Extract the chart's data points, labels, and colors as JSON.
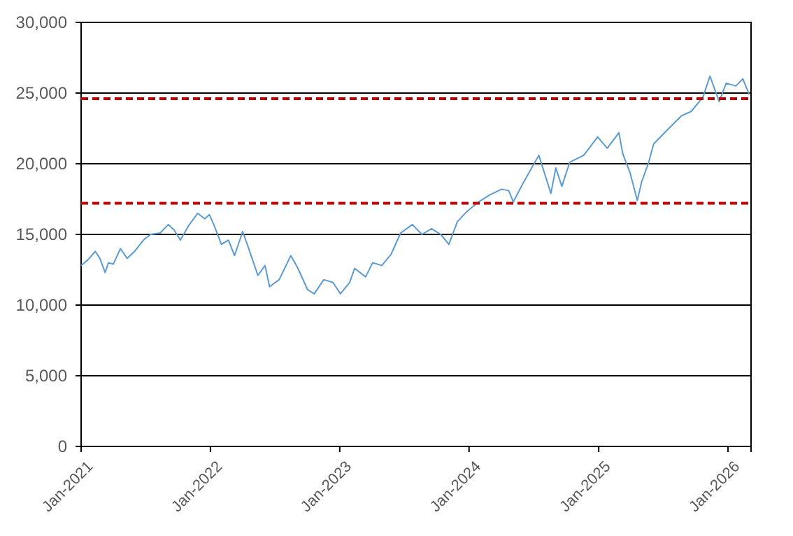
{
  "chart_data": {
    "type": "line",
    "x": [
      "2021-01-01",
      "2021-01-20",
      "2021-02-10",
      "2021-02-23",
      "2021-03-10",
      "2021-03-19",
      "2021-04-02",
      "2021-04-22",
      "2021-05-11",
      "2021-06-01",
      "2021-06-26",
      "2021-07-16",
      "2021-08-12",
      "2021-09-04",
      "2021-09-21",
      "2021-10-08",
      "2021-10-31",
      "2021-11-26",
      "2021-12-16",
      "2021-12-29",
      "2022-01-12",
      "2022-02-01",
      "2022-02-21",
      "2022-03-10",
      "2022-04-02",
      "2022-04-19",
      "2022-05-15",
      "2022-06-04",
      "2022-06-17",
      "2022-07-14",
      "2022-08-16",
      "2022-09-05",
      "2022-10-02",
      "2022-10-21",
      "2022-11-17",
      "2022-12-13",
      "2023-01-03",
      "2023-01-29",
      "2023-02-12",
      "2023-03-15",
      "2023-04-04",
      "2023-04-30",
      "2023-05-26",
      "2023-06-22",
      "2023-07-25",
      "2023-08-21",
      "2023-09-17",
      "2023-10-13",
      "2023-11-05",
      "2023-11-29",
      "2023-12-25",
      "2024-01-28",
      "2024-02-29",
      "2024-04-02",
      "2024-04-22",
      "2024-05-05",
      "2024-06-01",
      "2024-07-16",
      "2024-08-19",
      "2024-09-02",
      "2024-09-19",
      "2024-10-11",
      "2024-11-20",
      "2024-12-29",
      "2025-01-25",
      "2025-02-27",
      "2025-03-10",
      "2025-03-30",
      "2025-04-20",
      "2025-05-02",
      "2025-05-22",
      "2025-06-05",
      "2025-07-14",
      "2025-08-23",
      "2025-09-19",
      "2025-10-22",
      "2025-11-11",
      "2025-12-07",
      "2025-12-27",
      "2026-01-23",
      "2026-02-12",
      "2026-03-02"
    ],
    "series": [
      {
        "color": "#5b9bd5",
        "values": [
          12800,
          13200,
          13800,
          13300,
          12300,
          13000,
          12900,
          14000,
          13300,
          13800,
          14600,
          15000,
          15100,
          15700,
          15300,
          14600,
          15600,
          16500,
          16100,
          16400,
          15600,
          14300,
          14600,
          13500,
          15200,
          14000,
          12100,
          12800,
          11300,
          11800,
          13500,
          12600,
          11100,
          10800,
          11800,
          11600,
          10800,
          11600,
          12600,
          12000,
          13000,
          12800,
          13600,
          15100,
          15700,
          15000,
          15400,
          15000,
          14300,
          15900,
          16600,
          17300,
          17800,
          18200,
          18100,
          17300,
          18600,
          20600,
          17900,
          19700,
          18400,
          20100,
          20600,
          21900,
          21100,
          22200,
          20700,
          19400,
          17400,
          18700,
          20100,
          21400,
          22400,
          23400,
          23700,
          24700,
          26200,
          24400,
          25700,
          25500,
          26000,
          24900
        ]
      }
    ],
    "xlim": [
      "2021-01-01",
      "2026-03-07"
    ],
    "xticks": [
      {
        "value": "2021-01-01",
        "label": "Jan-2021"
      },
      {
        "value": "2022-01-01",
        "label": "Jan-2022"
      },
      {
        "value": "2023-01-01",
        "label": "Jan-2023"
      },
      {
        "value": "2024-01-01",
        "label": "Jan-2024"
      },
      {
        "value": "2025-01-01",
        "label": "Jan-2025"
      },
      {
        "value": "2026-01-01",
        "label": "Jan-2026"
      }
    ],
    "ylim": [
      0,
      30000
    ],
    "yticks": [
      {
        "value": 0,
        "label": "0"
      },
      {
        "value": 5000,
        "label": "5,000"
      },
      {
        "value": 10000,
        "label": "10,000"
      },
      {
        "value": 15000,
        "label": "15,000"
      },
      {
        "value": 20000,
        "label": "20,000"
      },
      {
        "value": 25000,
        "label": "25,000"
      },
      {
        "value": 30000,
        "label": "30,000"
      }
    ],
    "ref_lines": [
      {
        "axis": "y",
        "value": 24600,
        "color": "#c00000",
        "line_style": "dashed"
      },
      {
        "axis": "y",
        "value": 17200,
        "color": "#c00000",
        "line_style": "dashed"
      }
    ],
    "grid": "y",
    "marker": "none",
    "line_style": "solid"
  }
}
